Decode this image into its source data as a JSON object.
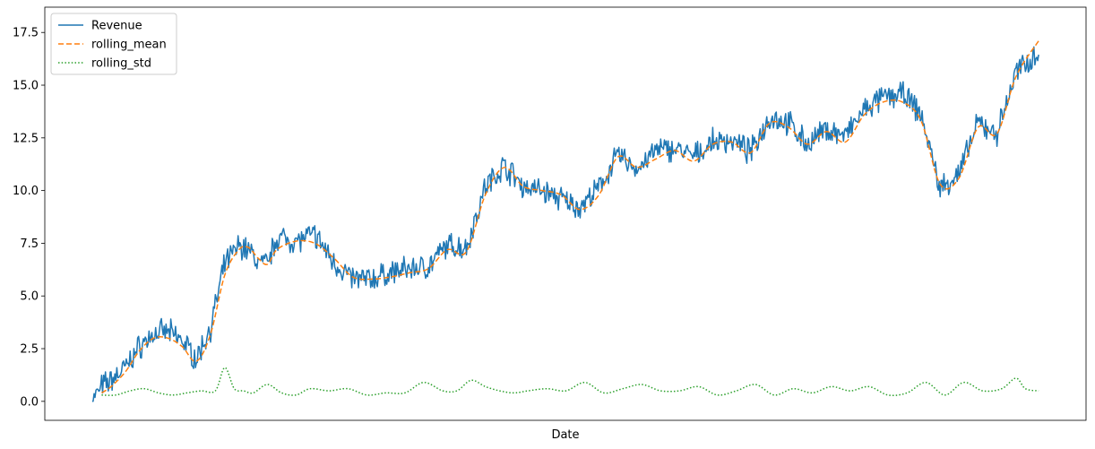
{
  "chart_data": {
    "type": "line",
    "title": "",
    "xlabel": "Date",
    "ylabel": "",
    "x_ticks_labeled": false,
    "x_index_range": [
      0,
      999
    ],
    "xlim": [
      -50,
      1049
    ],
    "ylim": [
      -0.9,
      18.7
    ],
    "y_ticks": [
      0.0,
      2.5,
      5.0,
      7.5,
      10.0,
      12.5,
      15.0,
      17.5
    ],
    "y_tick_labels": [
      "0.0",
      "2.5",
      "5.0",
      "7.5",
      "10.0",
      "12.5",
      "15.0",
      "17.5"
    ],
    "grid": false,
    "legend": {
      "placement": "top-left",
      "entries": [
        "Revenue",
        "rolling_mean",
        "rolling_std"
      ]
    },
    "colors": {
      "revenue": "#1f77b4",
      "rolling_mean": "#ff7f0e",
      "rolling_std": "#2ca02c"
    },
    "series": [
      {
        "name": "Revenue",
        "style": "solid",
        "x": [
          0,
          10,
          20,
          35,
          50,
          65,
          80,
          95,
          110,
          125,
          140,
          155,
          165,
          175,
          185,
          195,
          215,
          235,
          255,
          275,
          295,
          315,
          335,
          355,
          375,
          395,
          415,
          435,
          455,
          475,
          495,
          515,
          535,
          555,
          575,
          595,
          615,
          635,
          655,
          675,
          695,
          715,
          735,
          755,
          775,
          795,
          815,
          835,
          855,
          875,
          895,
          915,
          935,
          955,
          975,
          999
        ],
        "y": [
          0.0,
          0.7,
          1.0,
          1.6,
          2.6,
          3.2,
          3.3,
          2.9,
          2.0,
          3.5,
          6.5,
          7.4,
          7.2,
          6.6,
          6.5,
          7.8,
          7.6,
          7.9,
          6.6,
          5.8,
          5.8,
          6.1,
          6.3,
          6.4,
          7.4,
          7.3,
          10.2,
          11.2,
          10.2,
          10.0,
          9.6,
          9.2,
          10.1,
          11.7,
          11.0,
          11.9,
          12.0,
          11.6,
          12.3,
          12.4,
          11.8,
          13.5,
          13.2,
          12.2,
          12.9,
          12.6,
          13.8,
          14.4,
          14.6,
          13.6,
          10.1,
          10.8,
          13.2,
          12.7,
          15.6,
          16.6
        ]
      },
      {
        "name": "rolling_mean",
        "style": "dashed",
        "x": [
          10,
          20,
          35,
          50,
          65,
          80,
          95,
          110,
          125,
          140,
          155,
          165,
          175,
          185,
          195,
          215,
          235,
          255,
          275,
          295,
          315,
          335,
          355,
          375,
          395,
          415,
          435,
          455,
          475,
          495,
          515,
          535,
          555,
          575,
          595,
          615,
          635,
          655,
          675,
          695,
          715,
          735,
          755,
          775,
          795,
          815,
          835,
          855,
          875,
          895,
          915,
          935,
          955,
          975,
          999
        ],
        "y": [
          0.4,
          0.7,
          1.4,
          2.4,
          3.0,
          3.0,
          2.6,
          1.9,
          3.2,
          6.0,
          7.2,
          7.3,
          6.8,
          6.5,
          7.2,
          7.6,
          7.5,
          6.8,
          5.9,
          5.8,
          5.9,
          6.1,
          6.3,
          7.2,
          7.1,
          9.8,
          11.1,
          10.2,
          10.0,
          9.8,
          9.1,
          9.8,
          11.6,
          11.1,
          11.5,
          11.9,
          11.4,
          12.2,
          12.3,
          11.8,
          13.2,
          13.0,
          12.2,
          12.8,
          12.3,
          13.6,
          14.2,
          14.2,
          13.3,
          10.3,
          10.6,
          13.0,
          12.7,
          15.4,
          17.1
        ]
      },
      {
        "name": "rolling_std",
        "style": "dotted",
        "x": [
          10,
          25,
          40,
          55,
          70,
          85,
          100,
          115,
          130,
          140,
          150,
          160,
          170,
          185,
          200,
          215,
          230,
          250,
          270,
          290,
          310,
          330,
          350,
          370,
          385,
          400,
          415,
          430,
          445,
          460,
          480,
          500,
          520,
          540,
          560,
          580,
          600,
          620,
          640,
          660,
          680,
          700,
          720,
          740,
          760,
          780,
          800,
          820,
          840,
          860,
          880,
          900,
          920,
          940,
          960,
          975,
          985,
          999
        ],
        "y": [
          0.3,
          0.3,
          0.5,
          0.6,
          0.4,
          0.3,
          0.4,
          0.5,
          0.5,
          1.6,
          0.6,
          0.5,
          0.4,
          0.8,
          0.4,
          0.3,
          0.6,
          0.5,
          0.6,
          0.3,
          0.4,
          0.4,
          0.9,
          0.5,
          0.5,
          1.0,
          0.7,
          0.5,
          0.4,
          0.5,
          0.6,
          0.5,
          0.9,
          0.4,
          0.6,
          0.8,
          0.5,
          0.5,
          0.7,
          0.3,
          0.5,
          0.8,
          0.3,
          0.6,
          0.4,
          0.7,
          0.5,
          0.7,
          0.3,
          0.4,
          0.9,
          0.3,
          0.9,
          0.5,
          0.6,
          1.1,
          0.6,
          0.5
        ]
      }
    ]
  }
}
